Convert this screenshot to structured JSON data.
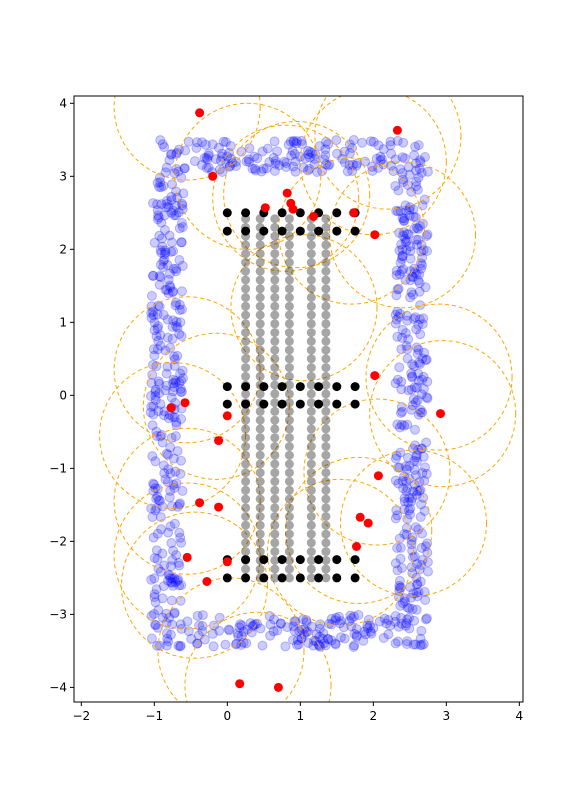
{
  "chart_data": {
    "type": "scatter",
    "title": "",
    "xlabel": "",
    "ylabel": "",
    "xlim": [
      -2.1,
      4.05
    ],
    "ylim": [
      -4.2,
      4.1
    ],
    "grid": false,
    "legend": "none",
    "x_ticks": [
      -2,
      -1,
      0,
      1,
      2,
      3,
      4
    ],
    "y_ticks": [
      -4,
      -3,
      -2,
      -1,
      0,
      1,
      2,
      3,
      4
    ],
    "colors": {
      "noisy_points": "#0000ff",
      "grid_points": "#000000",
      "red_points": "#ff0000",
      "circles": "#ffa500"
    },
    "noisy_boundary_region": {
      "x_outer": [
        -1.05,
        2.75
      ],
      "y_outer": [
        -3.45,
        3.5
      ],
      "band_width": 0.45,
      "count": 900
    },
    "grid_points": {
      "x": [
        0,
        0.25,
        0.5,
        0.75,
        1.0,
        1.25,
        1.5,
        1.75
      ],
      "y_rows_solid": [
        2.5,
        2.25,
        0.12,
        -0.12,
        -2.25,
        -2.5
      ],
      "x_columns": [
        0.25,
        0.45,
        0.65,
        0.85,
        1.15,
        1.35
      ],
      "column_y_range": [
        -2.5,
        2.5
      ]
    },
    "red_points": [
      {
        "x": -0.38,
        "y": 3.87
      },
      {
        "x": -0.2,
        "y": 3.0
      },
      {
        "x": 2.33,
        "y": 3.63
      },
      {
        "x": 0.52,
        "y": 2.57
      },
      {
        "x": 0.82,
        "y": 2.77
      },
      {
        "x": 0.87,
        "y": 2.63
      },
      {
        "x": 0.9,
        "y": 2.55
      },
      {
        "x": 1.18,
        "y": 2.45
      },
      {
        "x": 1.73,
        "y": 2.5
      },
      {
        "x": 2.02,
        "y": 2.2
      },
      {
        "x": 2.02,
        "y": 0.27
      },
      {
        "x": 2.92,
        "y": -0.25
      },
      {
        "x": -0.58,
        "y": -0.1
      },
      {
        "x": -0.77,
        "y": -0.17
      },
      {
        "x": 0.0,
        "y": -0.28
      },
      {
        "x": -0.12,
        "y": -0.62
      },
      {
        "x": 2.07,
        "y": -1.1
      },
      {
        "x": -0.38,
        "y": -1.47
      },
      {
        "x": -0.12,
        "y": -1.53
      },
      {
        "x": 1.82,
        "y": -1.67
      },
      {
        "x": 1.93,
        "y": -1.75
      },
      {
        "x": 1.77,
        "y": -2.07
      },
      {
        "x": -0.55,
        "y": -2.22
      },
      {
        "x": 0.0,
        "y": -2.28
      },
      {
        "x": -0.28,
        "y": -2.55
      },
      {
        "x": 0.17,
        "y": -3.95
      },
      {
        "x": 0.7,
        "y": -4.0
      }
    ],
    "circles": [
      {
        "x": -0.55,
        "y": 3.95,
        "r": 1.0
      },
      {
        "x": 0.28,
        "y": 3.0,
        "r": 1.0
      },
      {
        "x": 0.95,
        "y": 2.75,
        "r": 1.0
      },
      {
        "x": 2.2,
        "y": 3.55,
        "r": 1.0
      },
      {
        "x": 2.4,
        "y": 2.2,
        "r": 1.0
      },
      {
        "x": 0.8,
        "y": 2.7,
        "r": 1.0
      },
      {
        "x": 1.7,
        "y": 2.25,
        "r": 1.0
      },
      {
        "x": -0.55,
        "y": 0.35,
        "r": 1.0
      },
      {
        "x": -0.15,
        "y": -0.15,
        "r": 1.0
      },
      {
        "x": -0.75,
        "y": -0.55,
        "r": 1.0
      },
      {
        "x": 2.9,
        "y": 0.25,
        "r": 1.0
      },
      {
        "x": 2.95,
        "y": -0.25,
        "r": 1.0
      },
      {
        "x": 2.05,
        "y": -1.05,
        "r": 1.0
      },
      {
        "x": 1.8,
        "y": -1.85,
        "r": 1.0
      },
      {
        "x": 2.55,
        "y": -1.75,
        "r": 1.0
      },
      {
        "x": -0.55,
        "y": -1.45,
        "r": 1.0
      },
      {
        "x": -0.55,
        "y": -2.2,
        "r": 1.0
      },
      {
        "x": -0.45,
        "y": -2.6,
        "r": 1.0
      },
      {
        "x": 1.55,
        "y": -2.15,
        "r": 1.0
      },
      {
        "x": 0.05,
        "y": -3.5,
        "r": 1.0
      },
      {
        "x": 0.42,
        "y": -3.97,
        "r": 1.0
      },
      {
        "x": 1.05,
        "y": 1.2,
        "r": 1.0
      },
      {
        "x": 2.0,
        "y": 3.2,
        "r": 1.0
      }
    ]
  }
}
